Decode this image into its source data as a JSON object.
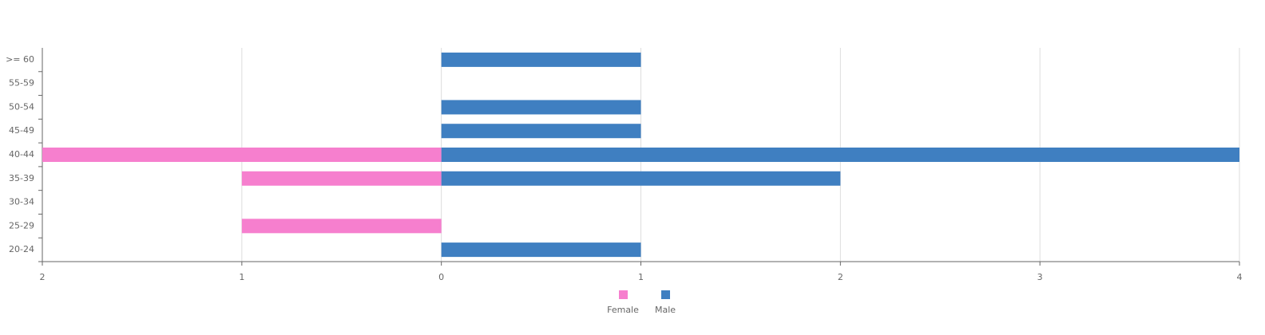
{
  "chart_data": {
    "type": "bar",
    "orientation": "horizontal",
    "categories": [
      "20-24",
      "25-29",
      "30-34",
      "35-39",
      "40-44",
      "45-49",
      "50-54",
      "55-59",
      ">= 60"
    ],
    "series": [
      {
        "name": "Female",
        "color": "#f67fce",
        "values": [
          0,
          -1,
          0,
          -1,
          -2,
          0,
          0,
          0,
          0
        ]
      },
      {
        "name": "Male",
        "color": "#3f7fc1",
        "values": [
          1,
          0,
          0,
          2,
          4,
          1,
          1,
          0,
          1
        ]
      }
    ],
    "xlim": [
      -2,
      4
    ],
    "xticks": [
      {
        "value": -2,
        "label": "2"
      },
      {
        "value": -1,
        "label": "1"
      },
      0,
      1,
      2,
      3,
      4
    ],
    "grid": true,
    "legend": "bottom"
  }
}
